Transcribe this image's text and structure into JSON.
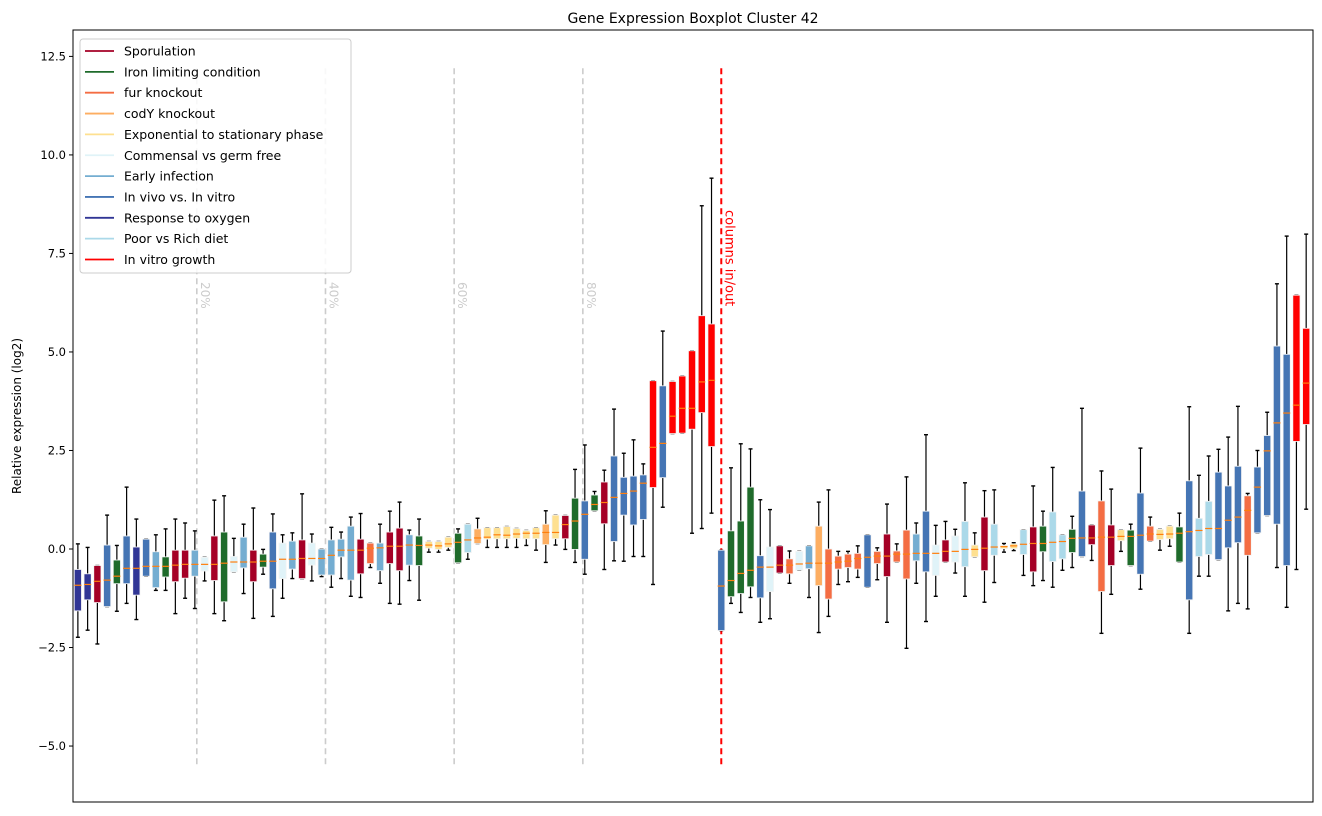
{
  "chart_data": {
    "type": "box",
    "title": "Gene Expression Boxplot Cluster 42",
    "xlabel": "",
    "ylabel": "Relative expression (log2)",
    "ylim": [
      -6.42,
      13.17
    ],
    "xlim": [
      0.5,
      127.7
    ],
    "yticks": [
      -5.0,
      -2.5,
      0.0,
      2.5,
      5.0,
      7.5,
      10.0,
      12.5
    ],
    "ytick_labels": [
      "−5.0",
      "−2.5",
      "0.0",
      "2.5",
      "5.0",
      "7.5",
      "10.0",
      "12.5"
    ],
    "grid": false,
    "legend_position": "top-left",
    "legend": [
      {
        "key": "S",
        "label": "Sporulation",
        "color": "#a50026"
      },
      {
        "key": "I",
        "label": "Iron limiting condition",
        "color": "#1f6b2b"
      },
      {
        "key": "F",
        "label": "fur knockout",
        "color": "#f46d43"
      },
      {
        "key": "C",
        "label": "codY knockout",
        "color": "#fdae61"
      },
      {
        "key": "E",
        "label": "Exponential to stationary phase",
        "color": "#fee090"
      },
      {
        "key": "M",
        "label": "Commensal vs germ free",
        "color": "#e0f3f8"
      },
      {
        "key": "A",
        "label": "Early infection",
        "color": "#74add1"
      },
      {
        "key": "V",
        "label": "In vivo vs. In vitro",
        "color": "#4575b4"
      },
      {
        "key": "O",
        "label": "Response to oxygen",
        "color": "#313695"
      },
      {
        "key": "P",
        "label": "Poor vs Rich diet",
        "color": "#abd9e9"
      },
      {
        "key": "R",
        "label": "In vitro growth",
        "color": "#ff0000"
      }
    ],
    "median_color": "#ff7f0e",
    "vlines": [
      {
        "x": 13.2,
        "label": "20%",
        "color": "#cccccc",
        "ymin": -5.5,
        "ymax": 12.2
      },
      {
        "x": 26.4,
        "label": "40%",
        "color": "#cccccc",
        "ymin": -5.5,
        "ymax": 12.2
      },
      {
        "x": 39.6,
        "label": "60%",
        "color": "#cccccc",
        "ymin": -5.5,
        "ymax": 12.2
      },
      {
        "x": 52.8,
        "label": "80%",
        "color": "#cccccc",
        "ymin": -5.5,
        "ymax": 12.2
      },
      {
        "x": 67.0,
        "label": "columns in/out",
        "color": "#ff0000",
        "ymin": -5.5,
        "ymax": 12.2
      }
    ],
    "box_fields": [
      "condition",
      "whisker_low",
      "q1",
      "median",
      "q3",
      "whisker_high"
    ],
    "boxes": [
      [
        "O",
        -2.24,
        -1.57,
        -0.92,
        -0.52,
        0.13
      ],
      [
        "O",
        -2.06,
        -1.29,
        -0.9,
        -0.63,
        0.04
      ],
      [
        "S",
        -2.41,
        -1.36,
        -0.82,
        -0.42,
        -0.42
      ],
      [
        "V",
        -1.46,
        -1.46,
        -0.79,
        0.1,
        0.86
      ],
      [
        "I",
        -1.58,
        -0.88,
        -0.69,
        -0.28,
        0.09
      ],
      [
        "V",
        -1.38,
        -0.88,
        -0.49,
        0.33,
        1.57
      ],
      [
        "O",
        -1.79,
        -1.17,
        -0.49,
        0.05,
        0.76
      ],
      [
        "V",
        -0.69,
        -0.69,
        -0.44,
        0.25,
        0.25
      ],
      [
        "A",
        -1.05,
        -0.98,
        -0.44,
        -0.07,
        0.36
      ],
      [
        "I",
        -1.05,
        -0.71,
        -0.44,
        -0.2,
        0.51
      ],
      [
        "S",
        -1.64,
        -0.83,
        -0.41,
        -0.03,
        0.76
      ],
      [
        "S",
        -1.25,
        -0.74,
        -0.39,
        -0.03,
        0.66
      ],
      [
        "A",
        -1.51,
        -0.69,
        -0.39,
        -0.03,
        0.46
      ],
      [
        "M",
        -0.81,
        -0.56,
        -0.39,
        -0.21,
        -0.21
      ],
      [
        "S",
        -1.64,
        -0.8,
        -0.39,
        0.33,
        1.24
      ],
      [
        "I",
        -1.82,
        -1.34,
        -0.36,
        0.43,
        1.35
      ],
      [
        "M",
        -0.58,
        -0.58,
        -0.33,
        -0.19,
        0.27
      ],
      [
        "A",
        -1.13,
        -0.48,
        -0.33,
        0.3,
        0.63
      ],
      [
        "S",
        -1.76,
        -0.83,
        -0.33,
        -0.03,
        1.04
      ],
      [
        "I",
        -0.64,
        -0.46,
        -0.31,
        -0.13,
        -0.01
      ],
      [
        "V",
        -1.71,
        -1.01,
        -0.31,
        0.43,
        0.89
      ],
      [
        "M",
        -1.25,
        -0.75,
        -0.26,
        0.15,
        0.36
      ],
      [
        "A",
        -0.75,
        -0.51,
        -0.26,
        0.2,
        0.41
      ],
      [
        "S",
        -0.75,
        -0.75,
        -0.24,
        0.23,
        1.4
      ],
      [
        "M",
        -0.81,
        -0.41,
        -0.24,
        0.15,
        0.38
      ],
      [
        "A",
        -0.7,
        -0.66,
        -0.24,
        0.0,
        0.0
      ],
      [
        "A",
        -0.97,
        -0.66,
        -0.16,
        0.23,
        0.55
      ],
      [
        "A",
        -0.75,
        -0.2,
        -0.03,
        0.25,
        0.43
      ],
      [
        "A",
        -1.2,
        -0.79,
        -0.03,
        0.58,
        0.81
      ],
      [
        "S",
        -1.23,
        -0.63,
        -0.03,
        0.25,
        0.9
      ],
      [
        "F",
        -0.47,
        -0.37,
        0.02,
        0.15,
        0.15
      ],
      [
        "A",
        -0.87,
        -0.55,
        0.03,
        0.15,
        0.63
      ],
      [
        "S",
        -1.38,
        -0.37,
        0.07,
        0.43,
        0.96
      ],
      [
        "S",
        -1.4,
        -0.55,
        0.07,
        0.53,
        1.19
      ],
      [
        "A",
        -0.8,
        -0.41,
        0.1,
        0.36,
        0.48
      ],
      [
        "I",
        -1.3,
        -0.42,
        0.09,
        0.33,
        0.76
      ],
      [
        "E",
        -0.08,
        0.02,
        0.1,
        0.19,
        0.19
      ],
      [
        "E",
        -0.08,
        -0.01,
        0.08,
        0.19,
        0.19
      ],
      [
        "E",
        -0.03,
        0.04,
        0.13,
        0.3,
        0.3
      ],
      [
        "I",
        -0.35,
        -0.35,
        0.17,
        0.4,
        0.51
      ],
      [
        "P",
        -0.26,
        -0.09,
        0.23,
        0.63,
        0.63
      ],
      [
        "C",
        0.14,
        0.14,
        0.28,
        0.51,
        0.78
      ],
      [
        "E",
        0.04,
        0.25,
        0.3,
        0.54,
        0.54
      ],
      [
        "E",
        0.04,
        0.26,
        0.36,
        0.54,
        0.54
      ],
      [
        "E",
        0.04,
        0.26,
        0.35,
        0.57,
        0.57
      ],
      [
        "E",
        0.04,
        0.27,
        0.38,
        0.52,
        0.52
      ],
      [
        "E",
        0.09,
        0.26,
        0.4,
        0.47,
        0.47
      ],
      [
        "E",
        -0.03,
        0.26,
        0.4,
        0.54,
        0.54
      ],
      [
        "C",
        -0.34,
        0.11,
        0.42,
        0.63,
        0.97
      ],
      [
        "E",
        0.1,
        0.26,
        0.42,
        0.86,
        0.86
      ],
      [
        "S",
        -0.01,
        0.26,
        0.62,
        0.85,
        0.85
      ],
      [
        "I",
        -0.34,
        -0.01,
        0.71,
        1.29,
        2.02
      ],
      [
        "V",
        -0.64,
        -0.26,
        0.88,
        1.22,
        2.64
      ],
      [
        "I",
        0.97,
        0.97,
        1.13,
        1.37,
        1.46
      ],
      [
        "S",
        -0.52,
        0.64,
        1.18,
        1.7,
        2.0
      ],
      [
        "V",
        -0.3,
        0.19,
        1.31,
        2.36,
        3.55
      ],
      [
        "V",
        -0.31,
        0.86,
        1.41,
        1.82,
        2.43
      ],
      [
        "V",
        -0.19,
        0.61,
        1.47,
        1.85,
        2.77
      ],
      [
        "V",
        -0.19,
        0.75,
        1.67,
        1.88,
        2.16
      ],
      [
        "R",
        -0.9,
        1.56,
        2.58,
        4.27,
        4.27
      ],
      [
        "V",
        1.06,
        1.81,
        2.68,
        4.14,
        5.53
      ],
      [
        "R",
        2.93,
        2.93,
        3.37,
        4.25,
        4.25
      ],
      [
        "R",
        2.94,
        2.94,
        3.57,
        4.39,
        4.39
      ],
      [
        "R",
        0.4,
        3.04,
        3.57,
        5.03,
        5.03
      ],
      [
        "R",
        0.52,
        3.46,
        4.24,
        5.92,
        8.71
      ],
      [
        "R",
        0.91,
        2.6,
        4.28,
        5.71,
        9.41
      ],
      [
        "V",
        -2.07,
        -2.07,
        -0.94,
        -0.03,
        -0.03
      ],
      [
        "I",
        -1.38,
        -1.21,
        -0.8,
        0.46,
        2.06
      ],
      [
        "I",
        -1.61,
        -1.13,
        -0.62,
        0.71,
        2.67
      ],
      [
        "I",
        -1.23,
        -0.96,
        -0.54,
        1.57,
        2.54
      ],
      [
        "V",
        -1.86,
        -1.24,
        -0.46,
        -0.17,
        1.25
      ],
      [
        "M",
        -1.77,
        -1.08,
        -0.46,
        0.05,
        1.0
      ],
      [
        "S",
        -0.61,
        -0.61,
        -0.41,
        0.08,
        0.08
      ],
      [
        "F",
        -0.87,
        -0.63,
        -0.41,
        -0.25,
        -0.05
      ],
      [
        "M",
        -0.54,
        -0.54,
        -0.38,
        -0.06,
        -0.06
      ],
      [
        "A",
        -1.23,
        -0.5,
        -0.36,
        0.08,
        0.08
      ],
      [
        "C",
        -2.12,
        -0.93,
        -0.36,
        0.58,
        1.19
      ],
      [
        "F",
        -1.71,
        -1.27,
        -0.36,
        0.0,
        1.5
      ],
      [
        "F",
        -0.9,
        -0.51,
        -0.33,
        -0.18,
        -0.06
      ],
      [
        "F",
        -0.83,
        -0.47,
        -0.31,
        -0.13,
        -0.06
      ],
      [
        "F",
        -0.72,
        -0.51,
        -0.24,
        -0.11,
        0.08
      ],
      [
        "V",
        -0.97,
        -0.97,
        -0.21,
        0.36,
        0.36
      ],
      [
        "F",
        -0.78,
        -0.37,
        -0.18,
        -0.06,
        0.03
      ],
      [
        "S",
        -1.86,
        -0.7,
        -0.18,
        0.38,
        1.14
      ],
      [
        "F",
        -0.33,
        -0.33,
        -0.13,
        -0.05,
        0.13
      ],
      [
        "F",
        -2.52,
        -0.76,
        -0.13,
        0.48,
        1.83
      ],
      [
        "A",
        -0.87,
        -0.3,
        -0.11,
        0.38,
        0.66
      ],
      [
        "V",
        -1.84,
        -0.58,
        -0.11,
        0.96,
        2.9
      ],
      [
        "M",
        -1.2,
        -0.67,
        -0.11,
        0.1,
        0.6
      ],
      [
        "S",
        -0.33,
        -0.33,
        -0.06,
        0.23,
        0.7
      ],
      [
        "M",
        -0.61,
        -0.33,
        -0.06,
        0.33,
        0.5
      ],
      [
        "P",
        -1.2,
        -0.45,
        -0.01,
        0.7,
        1.68
      ],
      [
        "E",
        -0.2,
        -0.2,
        -0.01,
        0.1,
        0.41
      ],
      [
        "S",
        -1.35,
        -0.55,
        0.02,
        0.81,
        1.48
      ],
      [
        "P",
        -0.85,
        -0.16,
        0.05,
        0.63,
        1.5
      ],
      [
        "E",
        -0.08,
        0.01,
        0.06,
        0.09,
        0.14
      ],
      [
        "E",
        -0.04,
        0.01,
        0.08,
        0.13,
        0.16
      ],
      [
        "P",
        -0.67,
        -0.14,
        0.12,
        0.49,
        0.49
      ],
      [
        "S",
        -0.93,
        -0.58,
        0.14,
        0.56,
        1.6
      ],
      [
        "I",
        -0.8,
        -0.07,
        0.14,
        0.58,
        0.96
      ],
      [
        "P",
        -0.97,
        -0.32,
        0.17,
        0.94,
        2.07
      ],
      [
        "P",
        -0.54,
        -0.25,
        0.19,
        0.36,
        0.36
      ],
      [
        "I",
        -0.47,
        -0.09,
        0.27,
        0.5,
        0.83
      ],
      [
        "V",
        -0.19,
        -0.19,
        0.28,
        1.47,
        3.57
      ],
      [
        "S",
        -0.29,
        0.11,
        0.28,
        0.61,
        0.61
      ],
      [
        "F",
        -2.14,
        -1.08,
        0.3,
        1.22,
        1.98
      ],
      [
        "S",
        -1.15,
        -0.42,
        0.3,
        0.61,
        1.52
      ],
      [
        "E",
        -0.06,
        0.21,
        0.32,
        0.49,
        0.49
      ],
      [
        "I",
        -0.42,
        -0.42,
        0.32,
        0.48,
        0.63
      ],
      [
        "V",
        -1.02,
        -0.64,
        0.35,
        1.42,
        2.56
      ],
      [
        "F",
        0.2,
        0.2,
        0.38,
        0.58,
        0.81
      ],
      [
        "E",
        -0.03,
        0.24,
        0.37,
        0.5,
        0.5
      ],
      [
        "E",
        0.07,
        0.26,
        0.38,
        0.58,
        0.58
      ],
      [
        "I",
        -0.33,
        -0.33,
        0.4,
        0.56,
        0.91
      ],
      [
        "V",
        -2.14,
        -1.29,
        0.44,
        1.73,
        3.61
      ],
      [
        "P",
        -0.69,
        -0.19,
        0.47,
        0.78,
        1.87
      ],
      [
        "P",
        -0.69,
        -0.14,
        0.52,
        1.21,
        2.36
      ],
      [
        "V",
        -0.27,
        -0.27,
        0.52,
        1.95,
        2.53
      ],
      [
        "V",
        -1.57,
        0.03,
        0.73,
        1.6,
        2.84
      ],
      [
        "V",
        -1.38,
        0.16,
        0.81,
        2.1,
        3.62
      ],
      [
        "F",
        -1.52,
        -0.16,
        0.98,
        1.35,
        1.41
      ],
      [
        "V",
        0.41,
        0.41,
        1.57,
        2.08,
        2.5
      ],
      [
        "V",
        0.85,
        0.85,
        2.49,
        2.88,
        3.47
      ],
      [
        "V",
        -0.47,
        0.63,
        3.2,
        5.15,
        6.73
      ],
      [
        "V",
        -1.48,
        -0.42,
        3.45,
        4.94,
        7.94
      ],
      [
        "R",
        -0.52,
        2.73,
        3.65,
        6.44,
        6.44
      ],
      [
        "R",
        1.01,
        3.16,
        4.21,
        5.6,
        7.99
      ]
    ]
  }
}
